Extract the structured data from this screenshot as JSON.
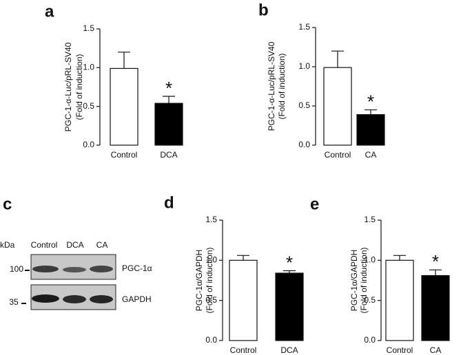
{
  "chart_data": [
    {
      "type": "bar",
      "label": "a",
      "ylabel": [
        "PGC-1-α-Luc/pRL-SV40",
        "(Fold of induction)"
      ],
      "categories": [
        "Control",
        "DCA"
      ],
      "values": [
        0.99,
        0.54
      ],
      "errors": [
        0.21,
        0.09
      ],
      "colors": [
        "#ffffff",
        "#000000"
      ],
      "ylim": [
        0,
        1.5
      ],
      "yticks": [
        {
          "value": 0,
          "label": "0.0"
        },
        {
          "value": 0.5,
          "label": "0.5"
        },
        {
          "value": 1,
          "label": "1.0"
        },
        {
          "value": 1.5,
          "label": "1.5"
        }
      ],
      "annotations": [
        {
          "text": "*",
          "x": "DCA"
        }
      ]
    },
    {
      "type": "bar",
      "label": "b",
      "ylabel": [
        "PGC-1-α-Luc/pRL-SV40",
        "(Fold of induction)"
      ],
      "categories": [
        "Control",
        "CA"
      ],
      "values": [
        0.99,
        0.39
      ],
      "errors": [
        0.21,
        0.06
      ],
      "colors": [
        "#ffffff",
        "#000000"
      ],
      "ylim": [
        0,
        1.5
      ],
      "yticks": [
        {
          "value": 0,
          "label": "0.0"
        },
        {
          "value": 0.5,
          "label": "0.5"
        },
        {
          "value": 1,
          "label": "1.0"
        },
        {
          "value": 1.5,
          "label": "1.5"
        }
      ],
      "annotations": [
        {
          "text": "*",
          "x": "CA"
        }
      ]
    },
    {
      "type": "bar",
      "label": "d",
      "ylabel": [
        "PGC-1α/GAPDH",
        "(Fold of induction)"
      ],
      "categories": [
        "Control",
        "DCA"
      ],
      "values": [
        1.0,
        0.84
      ],
      "errors": [
        0.06,
        0.03
      ],
      "colors": [
        "#ffffff",
        "#000000"
      ],
      "ylim": [
        0,
        1.5
      ],
      "yticks": [
        {
          "value": 0,
          "label": "0.0"
        },
        {
          "value": 0.5,
          "label": "0.5"
        },
        {
          "value": 1,
          "label": "1.0"
        },
        {
          "value": 1.5,
          "label": "1.5"
        }
      ],
      "annotations": [
        {
          "text": "*",
          "x": "DCA"
        }
      ]
    },
    {
      "type": "bar",
      "label": "e",
      "ylabel": [
        "PGC-1α/GAPDH",
        "(Fold of induction)"
      ],
      "categories": [
        "Control",
        "CA"
      ],
      "values": [
        1.0,
        0.81
      ],
      "errors": [
        0.06,
        0.07
      ],
      "colors": [
        "#ffffff",
        "#000000"
      ],
      "ylim": [
        0,
        1.5
      ],
      "yticks": [
        {
          "value": 0,
          "label": "0.0"
        },
        {
          "value": 0.5,
          "label": "0.5"
        },
        {
          "value": 1,
          "label": "1.0"
        },
        {
          "value": 1.5,
          "label": "1.5"
        }
      ],
      "annotations": [
        {
          "text": "*",
          "x": "CA"
        }
      ]
    }
  ],
  "blot": {
    "label": "c",
    "unit": "kDa",
    "lanes": [
      "Control",
      "DCA",
      "CA"
    ],
    "markers": [
      100,
      35
    ],
    "bands": [
      "PGC-1α",
      "GAPDH"
    ]
  }
}
